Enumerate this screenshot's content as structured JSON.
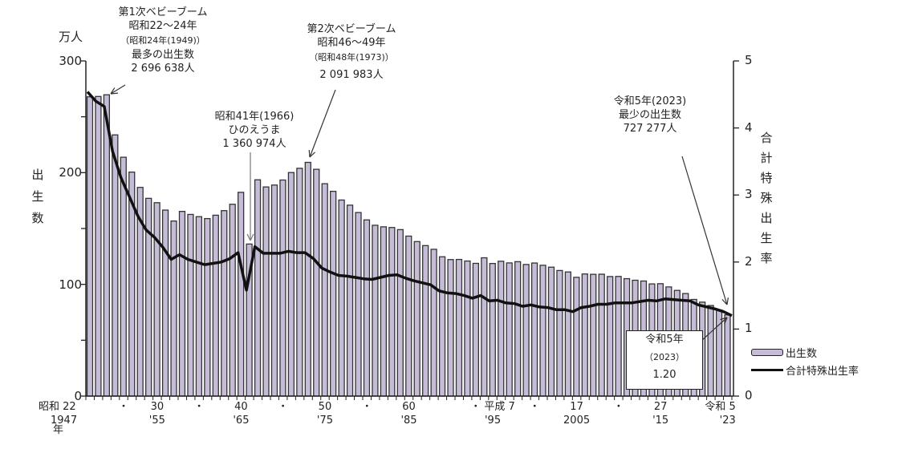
{
  "chart_data": {
    "type": "bar",
    "title": "",
    "xlabel": "年",
    "ylabel": "出生数",
    "ylabel_unit": "万人",
    "y2label": "合計特殊出生率",
    "ylim": [
      0,
      300
    ],
    "y2lim": [
      0,
      5
    ],
    "yticks": [
      0,
      100,
      200,
      300
    ],
    "y2ticks": [
      0,
      1,
      2,
      3,
      4,
      5
    ],
    "grid": false,
    "legend_position": "right",
    "x_start_year": 1947,
    "x_end_year": 2023,
    "x_tick_labels": [
      {
        "top": "昭和 22",
        "bottom": "1947",
        "year": 1947
      },
      {
        "top": "・",
        "bottom": "",
        "year": 1951
      },
      {
        "top": "30",
        "bottom": "'55",
        "year": 1955
      },
      {
        "top": "・",
        "bottom": "",
        "year": 1960
      },
      {
        "top": "40",
        "bottom": "'65",
        "year": 1965
      },
      {
        "top": "・",
        "bottom": "",
        "year": 1970
      },
      {
        "top": "50",
        "bottom": "'75",
        "year": 1975
      },
      {
        "top": "・",
        "bottom": "",
        "year": 1980
      },
      {
        "top": "60",
        "bottom": "'85",
        "year": 1985
      },
      {
        "top": "・ 平成 7",
        "bottom": "'95",
        "year": 1995
      },
      {
        "top": "・",
        "bottom": "",
        "year": 2000
      },
      {
        "top": "17",
        "bottom": "2005",
        "year": 2005
      },
      {
        "top": "・",
        "bottom": "",
        "year": 2010
      },
      {
        "top": "27",
        "bottom": "'15",
        "year": 2015
      },
      {
        "top": "令和 5",
        "bottom": "'23",
        "year": 2023
      }
    ],
    "series": [
      {
        "name": "出生数",
        "type": "bar",
        "unit": "万人",
        "color": "#c6bcd8",
        "values": [
          267.9,
          268.2,
          269.7,
          233.8,
          213.8,
          200.5,
          186.8,
          177.0,
          173.1,
          166.5,
          156.7,
          165.3,
          162.6,
          160.6,
          158.9,
          161.9,
          166.0,
          171.7,
          182.4,
          136.1,
          193.6,
          187.2,
          188.9,
          193.4,
          200.1,
          203.9,
          209.2,
          203.0,
          190.1,
          183.3,
          175.5,
          170.9,
          164.3,
          157.7,
          152.9,
          151.5,
          150.9,
          149.0,
          143.2,
          138.3,
          134.7,
          131.4,
          124.7,
          122.2,
          122.3,
          120.9,
          118.8,
          123.8,
          118.7,
          120.7,
          119.2,
          120.3,
          117.8,
          119.1,
          117.1,
          115.4,
          112.4,
          111.1,
          106.3,
          109.3,
          109.0,
          109.1,
          107.0,
          107.1,
          105.1,
          103.7,
          103.0,
          100.4,
          100.6,
          97.7,
          94.6,
          91.8,
          86.5,
          84.1,
          81.1,
          77.1,
          72.7
        ]
      },
      {
        "name": "合計特殊出生率",
        "type": "line",
        "axis": "right",
        "color": "#111111",
        "values": [
          4.54,
          4.4,
          4.32,
          3.65,
          3.26,
          2.98,
          2.69,
          2.48,
          2.37,
          2.22,
          2.04,
          2.11,
          2.04,
          2.0,
          1.96,
          1.98,
          2.0,
          2.05,
          2.14,
          1.58,
          2.23,
          2.13,
          2.13,
          2.13,
          2.16,
          2.14,
          2.14,
          2.05,
          1.91,
          1.85,
          1.8,
          1.79,
          1.77,
          1.75,
          1.74,
          1.77,
          1.8,
          1.81,
          1.76,
          1.72,
          1.69,
          1.66,
          1.57,
          1.54,
          1.53,
          1.5,
          1.46,
          1.5,
          1.42,
          1.43,
          1.39,
          1.38,
          1.34,
          1.36,
          1.33,
          1.32,
          1.29,
          1.29,
          1.26,
          1.32,
          1.34,
          1.37,
          1.37,
          1.39,
          1.39,
          1.39,
          1.41,
          1.43,
          1.42,
          1.45,
          1.44,
          1.43,
          1.42,
          1.36,
          1.33,
          1.3,
          1.26,
          1.2
        ]
      }
    ],
    "annotations": [
      {
        "lines": [
          "第1次ベビーブーム",
          "昭和22～24年",
          "（昭和24年(1949)）",
          "最多の出生数",
          "2 696 638人"
        ],
        "year": 1949
      },
      {
        "lines": [
          "第2次ベビーブーム",
          "昭和46～49年",
          "（昭和48年(1973)）",
          "2 091 983人"
        ],
        "year": 1973
      },
      {
        "lines": [
          "昭和41年(1966)",
          "ひのえうま",
          "1 360 974人"
        ],
        "year": 1966
      },
      {
        "lines": [
          "令和5年(2023)",
          "最少の出生数",
          "727 277人"
        ],
        "year": 2023
      },
      {
        "lines": [
          "令和5年",
          "（2023）",
          "1.20"
        ],
        "year": 2023,
        "boxed": true
      }
    ]
  },
  "labels": {
    "y_unit": "万人",
    "y_title_chars": [
      "出",
      "生",
      "数"
    ],
    "y2_title_chars": [
      "合",
      "計",
      "特",
      "殊",
      "出",
      "生",
      "率"
    ],
    "x_year_label": "年",
    "boom1": {
      "l1": "第1次ベビーブーム",
      "l2": "昭和22～24年",
      "l3": "（昭和24年(1949)）",
      "l4": "最多の出生数",
      "l5": "2 696 638人"
    },
    "boom2": {
      "l1": "第2次ベビーブーム",
      "l2": "昭和46～49年",
      "l3": "（昭和48年(1973)）",
      "l4": "2 091 983人"
    },
    "hinoeuma": {
      "l1": "昭和41年(1966)",
      "l2": "ひのえうま",
      "l3": "1 360 974人"
    },
    "min2023": {
      "l1": "令和5年(2023)",
      "l2": "最少の出生数",
      "l3": "727 277人"
    },
    "box2023": {
      "l1": "令和5年",
      "l2": "（2023）",
      "l3": "1.20"
    },
    "legend": {
      "bars": "出生数",
      "line": "合計特殊出生率"
    }
  }
}
